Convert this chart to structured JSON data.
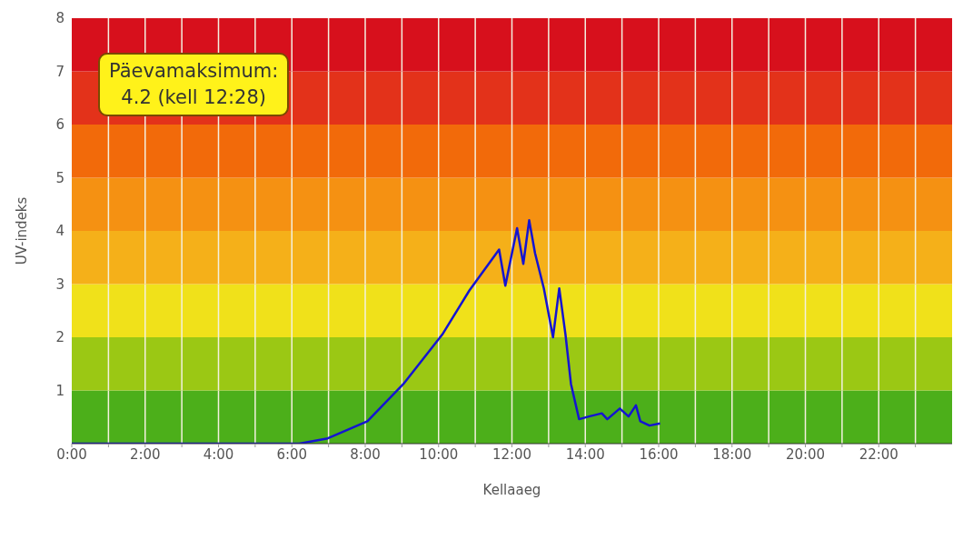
{
  "chart_data": {
    "type": "line",
    "xlabel": "Kellaaeg",
    "ylabel": "UV-indeks",
    "annotations": [
      "Päevamaksimum:\n4.2 (kell 12:28)"
    ],
    "xlim": [
      0,
      24
    ],
    "xticks": [
      {
        "value": 0,
        "label": "0:00"
      },
      {
        "value": 1,
        "label": null
      },
      {
        "value": 2,
        "label": "2:00"
      },
      {
        "value": 3,
        "label": null
      },
      {
        "value": 4,
        "label": "4:00"
      },
      {
        "value": 5,
        "label": null
      },
      {
        "value": 6,
        "label": "6:00"
      },
      {
        "value": 7,
        "label": null
      },
      {
        "value": 8,
        "label": "8:00"
      },
      {
        "value": 9,
        "label": null
      },
      {
        "value": 10,
        "label": "10:00"
      },
      {
        "value": 11,
        "label": null
      },
      {
        "value": 12,
        "label": "12:00"
      },
      {
        "value": 13,
        "label": null
      },
      {
        "value": 14,
        "label": "14:00"
      },
      {
        "value": 15,
        "label": null
      },
      {
        "value": 16,
        "label": "16:00"
      },
      {
        "value": 17,
        "label": null
      },
      {
        "value": 18,
        "label": "18:00"
      },
      {
        "value": 19,
        "label": null
      },
      {
        "value": 20,
        "label": "20:00"
      },
      {
        "value": 21,
        "label": null
      },
      {
        "value": 22,
        "label": "22:00"
      },
      {
        "value": 23,
        "label": null
      }
    ],
    "ylim": [
      0,
      8
    ],
    "yticks": [
      1,
      2,
      3,
      4,
      5,
      6,
      7,
      8
    ],
    "grid": "x",
    "marker": "none",
    "line_style": "solid",
    "bands": [
      {
        "axis": "y",
        "from": 0,
        "to": 1,
        "color": "#4caf1a"
      },
      {
        "axis": "y",
        "from": 1,
        "to": 2,
        "color": "#9bc814"
      },
      {
        "axis": "y",
        "from": 2,
        "to": 3,
        "color": "#f0e11a"
      },
      {
        "axis": "y",
        "from": 3,
        "to": 4,
        "color": "#f5b019"
      },
      {
        "axis": "y",
        "from": 4,
        "to": 5,
        "color": "#f59112"
      },
      {
        "axis": "y",
        "from": 5,
        "to": 6,
        "color": "#f26a0a"
      },
      {
        "axis": "y",
        "from": 6,
        "to": 7,
        "color": "#e3321a"
      },
      {
        "axis": "y",
        "from": 7,
        "to": 8,
        "color": "#d7101c"
      }
    ],
    "series": [
      {
        "color": "#1414d2",
        "x": [
          0,
          6.2,
          6.98,
          8.06,
          9.04,
          10.1,
          10.84,
          11.65,
          11.82,
          12.14,
          12.31,
          12.47,
          12.63,
          12.87,
          13.12,
          13.29,
          13.46,
          13.61,
          13.83,
          14.1,
          14.45,
          14.6,
          14.94,
          15.18,
          15.38,
          15.5,
          15.75,
          16.04
        ],
        "values": [
          0,
          0,
          0.1,
          0.42,
          1.12,
          2.05,
          2.88,
          3.65,
          2.97,
          4.05,
          3.38,
          4.2,
          3.58,
          2.92,
          2.0,
          2.92,
          2.05,
          1.12,
          0.46,
          0.51,
          0.57,
          0.46,
          0.66,
          0.51,
          0.72,
          0.42,
          0.34,
          0.38
        ]
      }
    ]
  }
}
